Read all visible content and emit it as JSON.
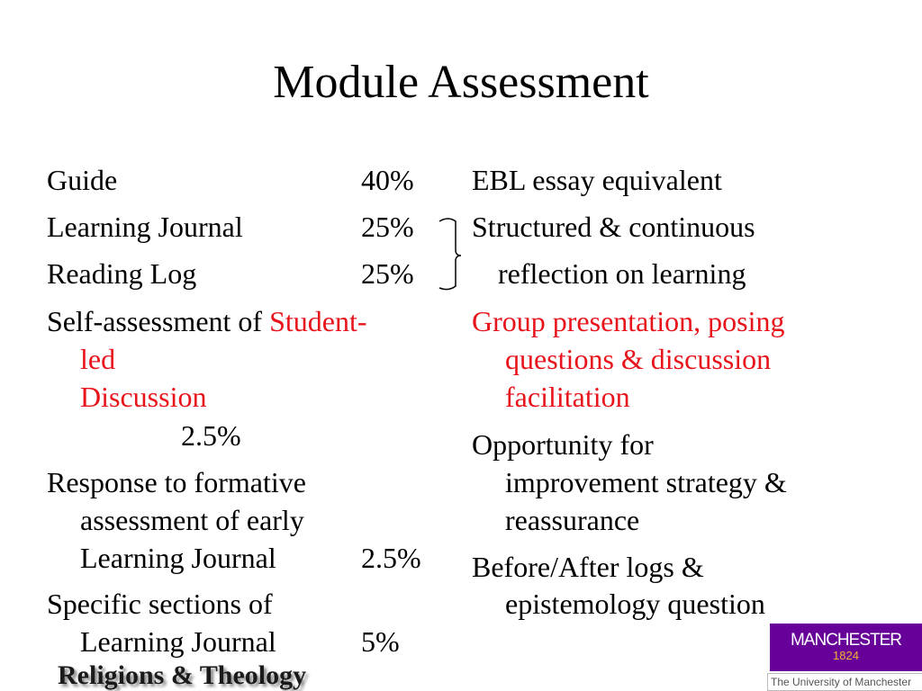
{
  "title": "Module Assessment",
  "left": {
    "guide": {
      "label": "Guide",
      "pct": "40%"
    },
    "journal": {
      "label": "Learning Journal",
      "pct": "25%"
    },
    "reading": {
      "label": "Reading Log",
      "pct": "25%"
    },
    "self": {
      "l1a": "Self-assessment of ",
      "l1b": "Student-",
      "l2": "led",
      "l3": "Discussion",
      "pct": "2.5%"
    },
    "response": {
      "l1": "Response to formative",
      "l2": "assessment of early",
      "l3": "Learning Journal",
      "pct": "2.5%"
    },
    "specific": {
      "l1": "Specific sections of",
      "l2": "Learning Journal",
      "pct": "5%"
    }
  },
  "right": {
    "ebl": "EBL essay equivalent",
    "structured": {
      "l1": "Structured & continuous",
      "l2": "reflection on learning"
    },
    "group": {
      "l1": "Group presentation, posing",
      "l2": "questions &  discussion",
      "l3": "facilitation"
    },
    "opportunity": {
      "l1": "Opportunity for",
      "l2": "improvement strategy &",
      "l3": "reassurance"
    },
    "before": {
      "l1": "Before/After logs &",
      "l2": "epistemology question"
    }
  },
  "footer": "Religions & Theology",
  "logo": {
    "name": "MANCHESTER",
    "year": "1824",
    "caption": "The University of Manchester"
  },
  "colors": {
    "accent_red": "#e8141b",
    "logo_purple": "#660099",
    "logo_gold": "#f3b233"
  }
}
